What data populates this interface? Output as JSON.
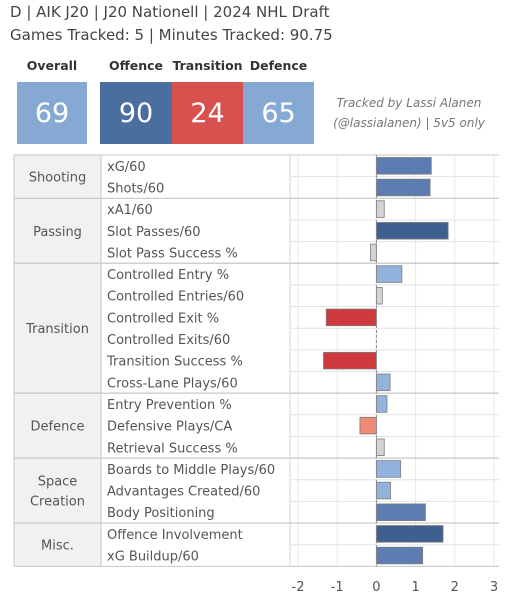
{
  "header": {
    "title_line1": "D | AIK J20 | J20 Nationell | 2024 NHL Draft",
    "title_line2": "Games Tracked: 5 | Minutes Tracked: 90.75",
    "credit_line1": "Tracked by Lassi Alanen",
    "credit_line2": "(@lassialanen) | 5v5 only"
  },
  "scores": [
    {
      "label": "Overall",
      "value": "69",
      "color": "#85A9D3"
    },
    {
      "label": "Offence",
      "value": "90",
      "color": "#4A6E9E"
    },
    {
      "label": "Transition",
      "value": "24",
      "color": "#D9514E"
    },
    {
      "label": "Defence",
      "value": "65",
      "color": "#85A9D3"
    }
  ],
  "colors": {
    "strong_pos": "#3E5F8F",
    "mid_pos": "#5C7DB1",
    "light_pos": "#93B3DE",
    "neutral": "#D7D2D2",
    "light_neg": "#EE8A76",
    "strong_neg": "#CF3A3F"
  },
  "chart_data": {
    "type": "bar",
    "orientation": "horizontal",
    "xlim": [
      -2,
      3
    ],
    "xticks": [
      "-2",
      "-1",
      "0",
      "1",
      "2",
      "3"
    ],
    "groups": [
      {
        "name": "Shooting",
        "metrics": [
          {
            "label": "xG/60",
            "value": 1.4
          },
          {
            "label": "Shots/60",
            "value": 1.37
          }
        ]
      },
      {
        "name": "Passing",
        "metrics": [
          {
            "label": "xA1/60",
            "value": 0.2
          },
          {
            "label": "Slot Passes/60",
            "value": 1.83
          },
          {
            "label": "Slot Pass Success %",
            "value": -0.15
          }
        ]
      },
      {
        "name": "Transition",
        "metrics": [
          {
            "label": "Controlled Entry %",
            "value": 0.65
          },
          {
            "label": "Controlled Entries/60",
            "value": 0.15
          },
          {
            "label": "Controlled Exit %",
            "value": -1.28
          },
          {
            "label": "Controlled Exits/60",
            "value": 0.0
          },
          {
            "label": "Transition Success %",
            "value": -1.35
          },
          {
            "label": "Cross-Lane Plays/60",
            "value": 0.35
          }
        ]
      },
      {
        "name": "Defence",
        "metrics": [
          {
            "label": "Entry Prevention %",
            "value": 0.27
          },
          {
            "label": "Defensive Plays/CA",
            "value": -0.42
          },
          {
            "label": "Retrieval Success %",
            "value": 0.2
          }
        ]
      },
      {
        "name": "Space Creation",
        "metrics": [
          {
            "label": "Boards to Middle Plays/60",
            "value": 0.62
          },
          {
            "label": "Advantages Created/60",
            "value": 0.36
          },
          {
            "label": "Body Positioning",
            "value": 1.25
          }
        ]
      },
      {
        "name": "Misc.",
        "metrics": [
          {
            "label": "Offence Involvement",
            "value": 1.7
          },
          {
            "label": "xG Buildup/60",
            "value": 1.18
          }
        ]
      }
    ]
  }
}
